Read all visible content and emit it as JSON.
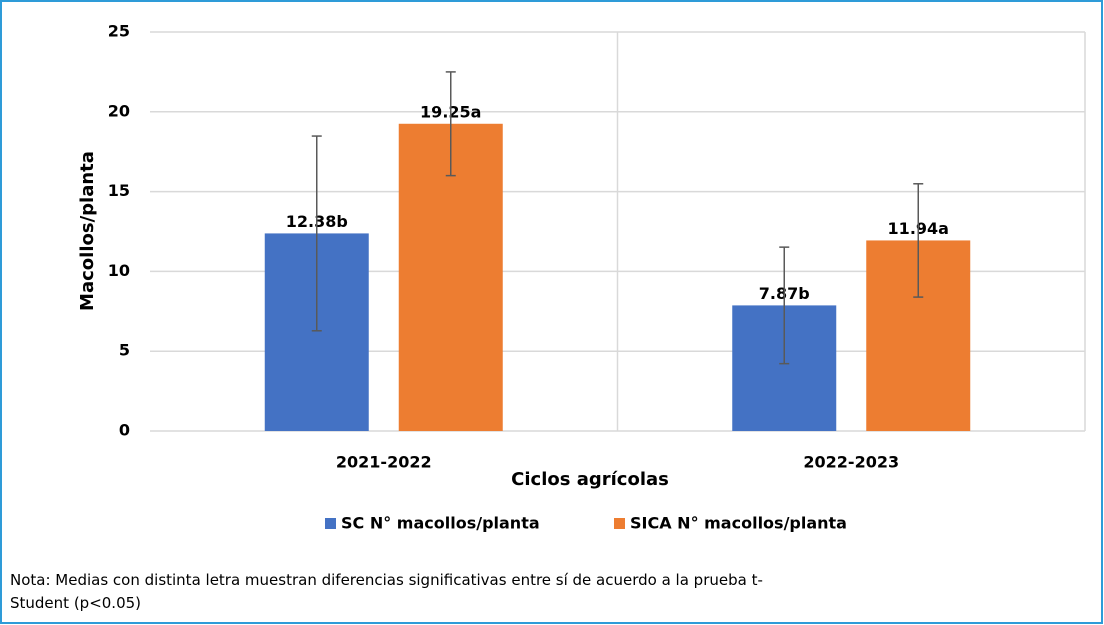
{
  "chart_data": {
    "type": "bar",
    "y_label": "Macollos/planta",
    "x_label": "Ciclos agrícolas",
    "categories": [
      "2021-2022",
      "2022-2023"
    ],
    "series": [
      {
        "name": "SC N° macollos/planta",
        "color": "#4472c4",
        "values": [
          12.38,
          7.87
        ],
        "errors": [
          6.1,
          3.65
        ],
        "value_labels": [
          "12.38b",
          "7.87b"
        ]
      },
      {
        "name": "SICA N° macollos/planta",
        "color": "#ed7d31",
        "values": [
          19.25,
          11.94
        ],
        "errors": [
          3.25,
          3.55
        ],
        "value_labels": [
          "19.25a",
          "11.94a"
        ]
      }
    ],
    "ylim": [
      0,
      25
    ],
    "yticks": [
      0,
      5,
      10,
      15,
      20,
      25
    ],
    "grid": true,
    "legend": "bottom"
  },
  "note_lines": [
    "Nota: Medias con distinta letra muestran diferencias significativas entre sí de acuerdo a la prueba t-",
    "Student (p<0.05)"
  ]
}
